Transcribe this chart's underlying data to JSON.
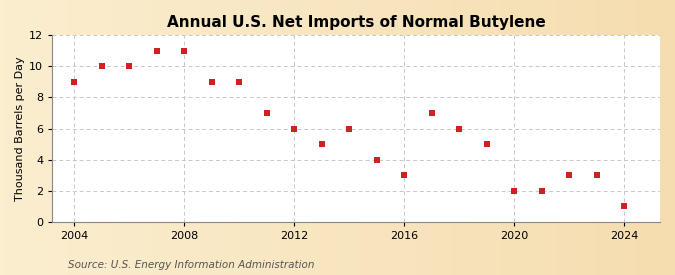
{
  "title": "Annual U.S. Net Imports of Normal Butylene",
  "ylabel": "Thousand Barrels per Day",
  "source_text": "Source: U.S. Energy Information Administration",
  "years": [
    2004,
    2005,
    2006,
    2007,
    2008,
    2009,
    2010,
    2011,
    2012,
    2013,
    2014,
    2015,
    2016,
    2017,
    2018,
    2019,
    2020,
    2021,
    2022,
    2023,
    2024
  ],
  "values": [
    9,
    10,
    10,
    11,
    11,
    9,
    9,
    7,
    6,
    5,
    6,
    4,
    3,
    7,
    6,
    5,
    2,
    2,
    3,
    3,
    1
  ],
  "marker_color": "#cc2222",
  "marker_size": 4,
  "bg_left_color": "#fbeecf",
  "bg_right_color": "#f5ddb0",
  "plot_bg_color": "#ffffff",
  "grid_color": "#c8c8c8",
  "ylim": [
    0,
    12
  ],
  "xlim": [
    2003.2,
    2025.3
  ],
  "xticks": [
    2004,
    2008,
    2012,
    2016,
    2020,
    2024
  ],
  "yticks": [
    0,
    2,
    4,
    6,
    8,
    10,
    12
  ],
  "title_fontsize": 11,
  "axis_label_fontsize": 8,
  "tick_fontsize": 8,
  "source_fontsize": 7.5
}
